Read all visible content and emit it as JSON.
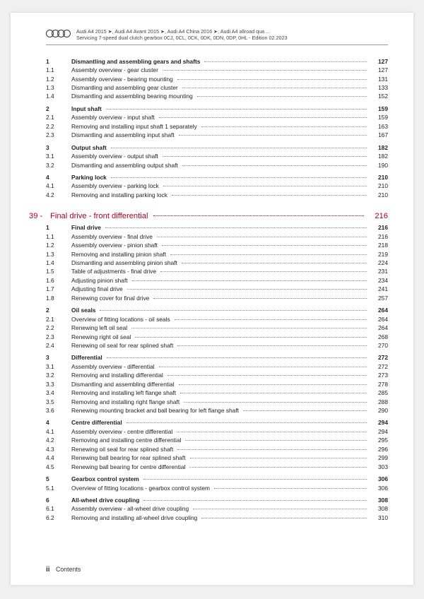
{
  "header": {
    "line1": "Audi A4 2015 ➤, Audi A4 Avant 2015 ➤, Audi A4 China 2016 ➤, Audi A4 allroad qua ...",
    "line2": "Servicing 7-speed dual clutch gearbox 0CJ, 0CL, 0CK, 0DK, 0DN, 0DP, 0HL - Edition 02.2023"
  },
  "sections": [
    {
      "type": "group",
      "rows": [
        {
          "n": "1",
          "t": "Dismantling and assembling gears and shafts",
          "p": "127",
          "b": true
        },
        {
          "n": "1.1",
          "t": "Assembly overview - gear cluster",
          "p": "127"
        },
        {
          "n": "1.2",
          "t": "Assembly overview - bearing mounting",
          "p": "131"
        },
        {
          "n": "1.3",
          "t": "Dismantling and assembling gear cluster",
          "p": "133"
        },
        {
          "n": "1.4",
          "t": "Dismantling and assembling bearing mounting",
          "p": "152"
        }
      ]
    },
    {
      "type": "group",
      "rows": [
        {
          "n": "2",
          "t": "Input shaft",
          "p": "159",
          "b": true
        },
        {
          "n": "2.1",
          "t": "Assembly overview - input shaft",
          "p": "159"
        },
        {
          "n": "2.2",
          "t": "Removing and installing input shaft 1 separately",
          "p": "163"
        },
        {
          "n": "2.3",
          "t": "Dismantling and assembling input shaft",
          "p": "167"
        }
      ]
    },
    {
      "type": "group",
      "rows": [
        {
          "n": "3",
          "t": "Output shaft",
          "p": "182",
          "b": true
        },
        {
          "n": "3.1",
          "t": "Assembly overview - output shaft",
          "p": "182"
        },
        {
          "n": "3.2",
          "t": "Dismantling and assembling output shaft",
          "p": "190"
        }
      ]
    },
    {
      "type": "group",
      "rows": [
        {
          "n": "4",
          "t": "Parking lock",
          "p": "210",
          "b": true
        },
        {
          "n": "4.1",
          "t": "Assembly overview - parking lock",
          "p": "210"
        },
        {
          "n": "4.2",
          "t": "Removing and installing parking lock",
          "p": "210"
        }
      ]
    },
    {
      "type": "chapter",
      "n": "39 -",
      "t": "Final drive - front differential",
      "p": "216"
    },
    {
      "type": "group",
      "rows": [
        {
          "n": "1",
          "t": "Final drive",
          "p": "216",
          "b": true
        },
        {
          "n": "1.1",
          "t": "Assembly overview - final drive",
          "p": "216"
        },
        {
          "n": "1.2",
          "t": "Assembly overview - pinion shaft",
          "p": "218"
        },
        {
          "n": "1.3",
          "t": "Removing and installing pinion shaft",
          "p": "219"
        },
        {
          "n": "1.4",
          "t": "Dismantling and assembling pinion shaft",
          "p": "224"
        },
        {
          "n": "1.5",
          "t": "Table of adjustments - final drive",
          "p": "231"
        },
        {
          "n": "1.6",
          "t": "Adjusting pinion shaft",
          "p": "234"
        },
        {
          "n": "1.7",
          "t": "Adjusting final drive",
          "p": "241"
        },
        {
          "n": "1.8",
          "t": "Renewing cover for final drive",
          "p": "257"
        }
      ]
    },
    {
      "type": "group",
      "rows": [
        {
          "n": "2",
          "t": "Oil seals",
          "p": "264",
          "b": true
        },
        {
          "n": "2.1",
          "t": "Overview of fitting locations - oil seals",
          "p": "264"
        },
        {
          "n": "2.2",
          "t": "Renewing left oil seal",
          "p": "264"
        },
        {
          "n": "2.3",
          "t": "Renewing right oil seal",
          "p": "268"
        },
        {
          "n": "2.4",
          "t": "Renewing oil seal for rear splined shaft",
          "p": "270"
        }
      ]
    },
    {
      "type": "group",
      "rows": [
        {
          "n": "3",
          "t": "Differential",
          "p": "272",
          "b": true
        },
        {
          "n": "3.1",
          "t": "Assembly overview - differential",
          "p": "272"
        },
        {
          "n": "3.2",
          "t": "Removing and installing differential",
          "p": "273"
        },
        {
          "n": "3.3",
          "t": "Dismantling and assembling differential",
          "p": "278"
        },
        {
          "n": "3.4",
          "t": "Removing and installing left flange shaft",
          "p": "285"
        },
        {
          "n": "3.5",
          "t": "Removing and installing right flange shaft",
          "p": "288"
        },
        {
          "n": "3.6",
          "t": "Renewing mounting bracket and ball bearing for left flange shaft",
          "p": "290"
        }
      ]
    },
    {
      "type": "group",
      "rows": [
        {
          "n": "4",
          "t": "Centre differential",
          "p": "294",
          "b": true
        },
        {
          "n": "4.1",
          "t": "Assembly overview - centre differential",
          "p": "294"
        },
        {
          "n": "4.2",
          "t": "Removing and installing centre differential",
          "p": "295"
        },
        {
          "n": "4.3",
          "t": "Renewing oil seal for rear splined shaft",
          "p": "296"
        },
        {
          "n": "4.4",
          "t": "Renewing ball bearing for rear splined shaft",
          "p": "299"
        },
        {
          "n": "4.5",
          "t": "Renewing ball bearing for centre differential",
          "p": "303"
        }
      ]
    },
    {
      "type": "group",
      "rows": [
        {
          "n": "5",
          "t": "Gearbox control system",
          "p": "306",
          "b": true
        },
        {
          "n": "5.1",
          "t": "Overview of fitting locations - gearbox control system",
          "p": "306"
        }
      ]
    },
    {
      "type": "group",
      "rows": [
        {
          "n": "6",
          "t": "All-wheel drive coupling",
          "p": "308",
          "b": true
        },
        {
          "n": "6.1",
          "t": "Assembly overview - all-wheel drive coupling",
          "p": "308"
        },
        {
          "n": "6.2",
          "t": "Removing and installing all-wheel drive coupling",
          "p": "310"
        }
      ]
    }
  ],
  "footer": {
    "roman": "ii",
    "label": "Contents"
  }
}
